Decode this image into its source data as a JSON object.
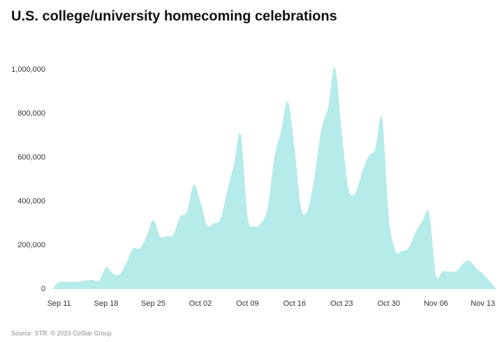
{
  "chart_data": {
    "type": "area",
    "title": "U.S. college/university homecoming celebrations",
    "source": "Source: STR. © 2023 CoStar Group",
    "color": "#b5ebe8",
    "categories": [
      null,
      "Sep 11",
      null,
      null,
      null,
      null,
      null,
      null,
      "Sep 18",
      null,
      null,
      null,
      null,
      null,
      null,
      "Sep 25",
      null,
      null,
      null,
      null,
      null,
      null,
      "Oct 02",
      null,
      null,
      null,
      null,
      null,
      null,
      "Oct 09",
      null,
      null,
      null,
      null,
      null,
      null,
      "Oct 16",
      null,
      null,
      null,
      null,
      null,
      null,
      "Oct 23",
      null,
      null,
      null,
      null,
      null,
      null,
      "Oct 30",
      null,
      null,
      null,
      null,
      null,
      null,
      "Nov 06",
      null,
      null,
      null,
      null,
      null,
      null,
      "Nov 13",
      null,
      null
    ],
    "values": [
      0,
      32000,
      32000,
      33000,
      34000,
      40000,
      41000,
      40000,
      100000,
      70000,
      68000,
      120000,
      185000,
      185000,
      240000,
      315000,
      240000,
      240000,
      250000,
      330000,
      350000,
      475000,
      400000,
      290000,
      300000,
      320000,
      450000,
      570000,
      705000,
      330000,
      285000,
      300000,
      370000,
      600000,
      720000,
      855000,
      640000,
      365000,
      365000,
      520000,
      730000,
      830000,
      1010000,
      720000,
      460000,
      435000,
      530000,
      605000,
      640000,
      780000,
      330000,
      175000,
      175000,
      190000,
      260000,
      310000,
      345000,
      65000,
      80000,
      80000,
      80000,
      115000,
      130000,
      95000,
      70000,
      35000,
      0
    ],
    "ylim": [
      0,
      1100000
    ],
    "yticks": [
      0,
      {
        "value": 200000,
        "label": "200,000"
      },
      {
        "value": 400000,
        "label": "400,000"
      },
      {
        "value": 600000,
        "label": "600,000"
      },
      {
        "value": 800000,
        "label": "800,000"
      },
      {
        "value": 1000000,
        "label": "1,000,000"
      }
    ]
  }
}
